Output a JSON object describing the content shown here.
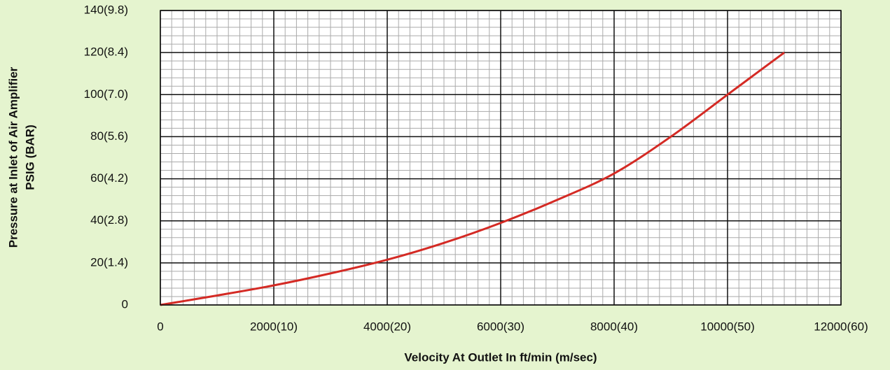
{
  "chart_data": {
    "type": "line",
    "xlabel": "Velocity At Outlet In ft/min (m/sec)",
    "ylabel": [
      "Pressure at Inlet of Air Amplifier",
      "PSIG (BAR)"
    ],
    "series": [
      {
        "color": "#d42a24",
        "x": [
          0,
          1000,
          2000,
          3000,
          4000,
          5000,
          6000,
          7000,
          8000,
          9000,
          10000,
          10500,
          11000
        ],
        "values": [
          0,
          4.5,
          9.3,
          15,
          21.5,
          29.5,
          39,
          50,
          62.5,
          80,
          100,
          110,
          120
        ]
      }
    ],
    "xlim": [
      0,
      12000
    ],
    "xticks": [
      0,
      {
        "value": 2000,
        "label": "2000(10)"
      },
      {
        "value": 4000,
        "label": "4000(20)"
      },
      {
        "value": 6000,
        "label": "6000(30)"
      },
      {
        "value": 8000,
        "label": "8000(40)"
      },
      {
        "value": 10000,
        "label": "10000(50)"
      },
      {
        "value": 12000,
        "label": "12000(60)"
      }
    ],
    "ylim": [
      0,
      140
    ],
    "yticks": [
      0,
      {
        "value": 20,
        "label": "20(1.4)"
      },
      {
        "value": 40,
        "label": "40(2.8)"
      },
      {
        "value": 60,
        "label": "60(4.2)"
      },
      {
        "value": 80,
        "label": "80(5.6)"
      },
      {
        "value": 100,
        "label": "100(7.0)"
      },
      {
        "value": 120,
        "label": "120(8.4)"
      },
      {
        "value": 140,
        "label": "140(9.8)"
      }
    ],
    "grid": true,
    "minor_grid": {
      "x": 10,
      "y": 5
    }
  }
}
